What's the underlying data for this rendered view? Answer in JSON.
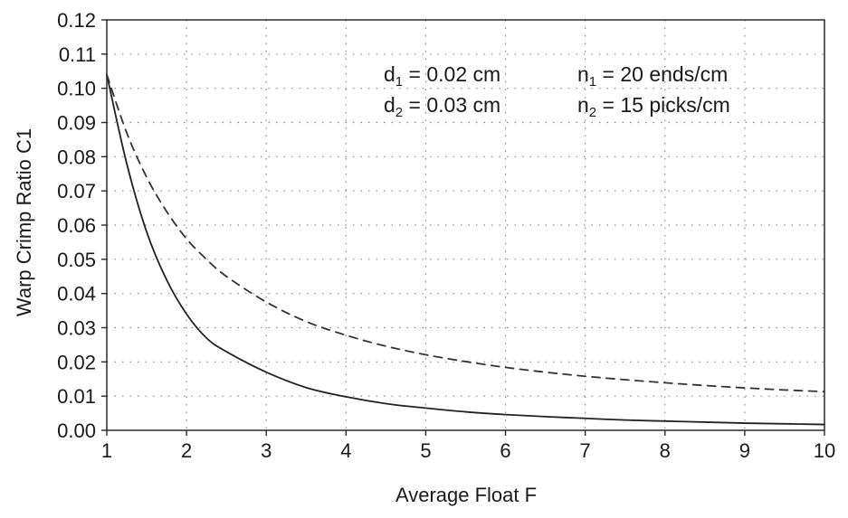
{
  "chart_data": {
    "type": "line",
    "title": "",
    "xlabel": "Average Float F",
    "ylabel": "Warp Crimp Ratio C1",
    "xlim": [
      1,
      10
    ],
    "ylim": [
      0,
      0.12
    ],
    "x_ticks": [
      1,
      2,
      3,
      4,
      5,
      6,
      7,
      8,
      9,
      10
    ],
    "x_tick_labels": [
      "1",
      "2",
      "3",
      "4",
      "5",
      "6",
      "7",
      "8",
      "9",
      "10"
    ],
    "y_ticks": [
      0,
      0.01,
      0.02,
      0.03,
      0.04,
      0.05,
      0.06,
      0.07,
      0.08,
      0.09,
      0.1,
      0.11,
      0.12
    ],
    "y_tick_labels": [
      "0.00",
      "0.01",
      "0.02",
      "0.03",
      "0.04",
      "0.05",
      "0.06",
      "0.07",
      "0.08",
      "0.09",
      "0.10",
      "0.11",
      "0.12"
    ],
    "grid": true,
    "legend": "none",
    "annotations": [
      {
        "var": "d",
        "sub": "1",
        "rest": " = 0.02 cm"
      },
      {
        "var": "n",
        "sub": "1",
        "rest": " = 20 ends/cm"
      },
      {
        "var": "d",
        "sub": "2",
        "rest": " = 0.03 cm"
      },
      {
        "var": "n",
        "sub": "2",
        "rest": " = 15 picks/cm"
      }
    ],
    "series": [
      {
        "style": "solid",
        "color": "#222222",
        "x": [
          1,
          1.25,
          1.5,
          1.75,
          2,
          2.25,
          2.5,
          3,
          3.5,
          4,
          4.5,
          5,
          5.5,
          6,
          6.5,
          7,
          7.5,
          8,
          8.5,
          9,
          9.5,
          10
        ],
        "y": [
          0.104,
          0.078,
          0.058,
          0.044,
          0.034,
          0.027,
          0.023,
          0.017,
          0.0125,
          0.0098,
          0.0078,
          0.0065,
          0.0054,
          0.0046,
          0.004,
          0.0035,
          0.003,
          0.0027,
          0.0024,
          0.0021,
          0.0019,
          0.0017
        ]
      },
      {
        "style": "dashed",
        "color": "#333333",
        "x": [
          1,
          1.25,
          1.5,
          1.75,
          2,
          2.25,
          2.5,
          3,
          3.5,
          4,
          4.5,
          5,
          5.5,
          6,
          6.5,
          7,
          7.5,
          8,
          8.5,
          9,
          9.5,
          10
        ],
        "y": [
          0.104,
          0.087,
          0.074,
          0.064,
          0.056,
          0.05,
          0.045,
          0.0375,
          0.0318,
          0.0278,
          0.0246,
          0.0221,
          0.0201,
          0.0184,
          0.017,
          0.0158,
          0.0148,
          0.0139,
          0.0131,
          0.0124,
          0.0118,
          0.0113
        ]
      }
    ]
  }
}
